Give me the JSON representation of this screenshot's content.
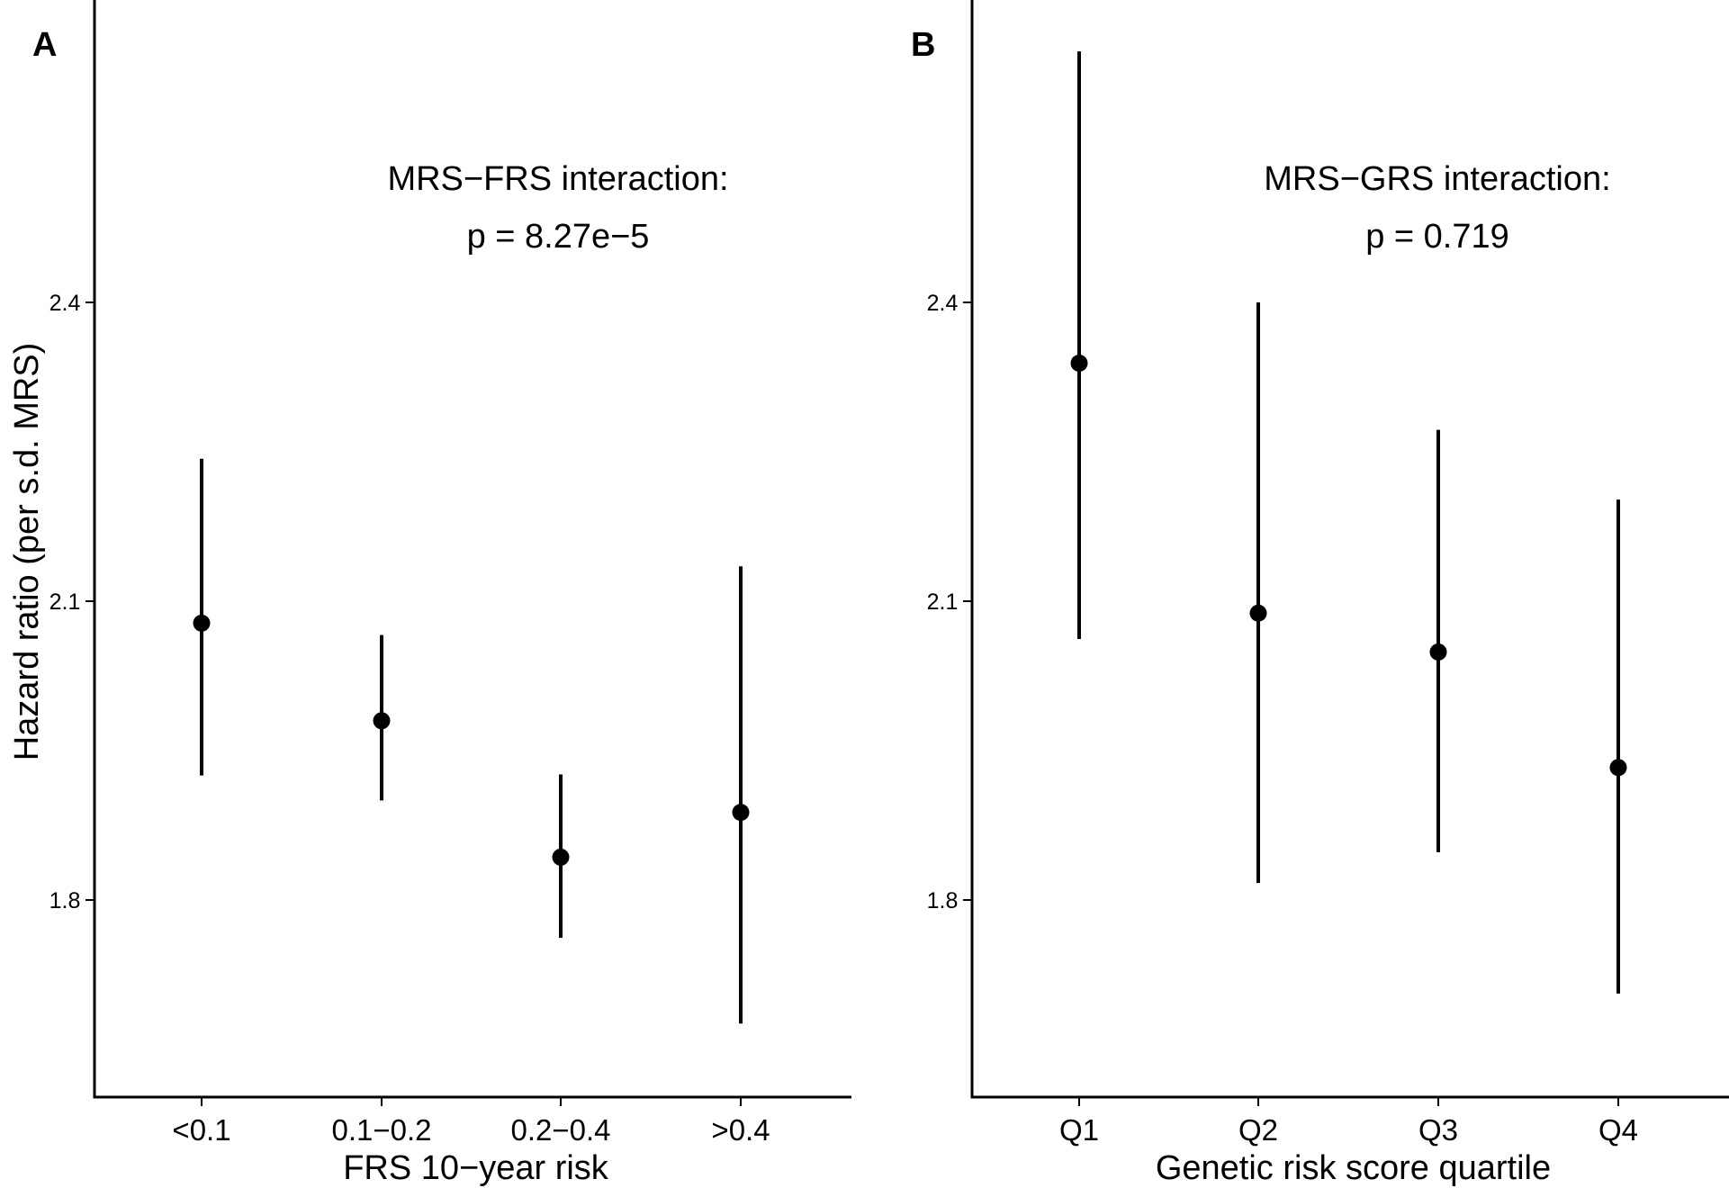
{
  "chart_data": [
    {
      "type": "errorbar",
      "panel_label": "A",
      "categories": [
        "<0.1",
        "0.1−0.2",
        "0.2−0.4",
        ">0.4"
      ],
      "values": [
        2.078,
        1.98,
        1.843,
        1.888
      ],
      "lower": [
        1.925,
        1.9,
        1.762,
        1.676
      ],
      "upper": [
        2.243,
        2.066,
        1.926,
        2.135
      ],
      "xlabel": "FRS 10−year risk",
      "ylabel": "Hazard ratio (per s.d. MRS)",
      "yticks": [
        1.8,
        2.1,
        2.4
      ],
      "ytick_labels": [
        "1.8",
        "2.1",
        "2.4"
      ],
      "ylim": [
        1.6,
        2.7
      ],
      "annotation": [
        "MRS−FRS interaction:",
        "p = 8.27e−5"
      ]
    },
    {
      "type": "errorbar",
      "panel_label": "B",
      "categories": [
        "Q1",
        "Q2",
        "Q3",
        "Q4"
      ],
      "values": [
        2.339,
        2.088,
        2.049,
        1.933
      ],
      "lower": [
        2.062,
        1.817,
        1.848,
        1.706
      ],
      "upper": [
        2.652,
        2.4,
        2.272,
        2.202
      ],
      "xlabel": "Genetic risk score quartile",
      "ylabel": "",
      "yticks": [
        1.8,
        2.1,
        2.4
      ],
      "ytick_labels": [
        "1.8",
        "2.1",
        "2.4"
      ],
      "ylim": [
        1.6,
        2.7
      ],
      "annotation": [
        "MRS−GRS interaction:",
        "p = 0.719"
      ]
    }
  ]
}
